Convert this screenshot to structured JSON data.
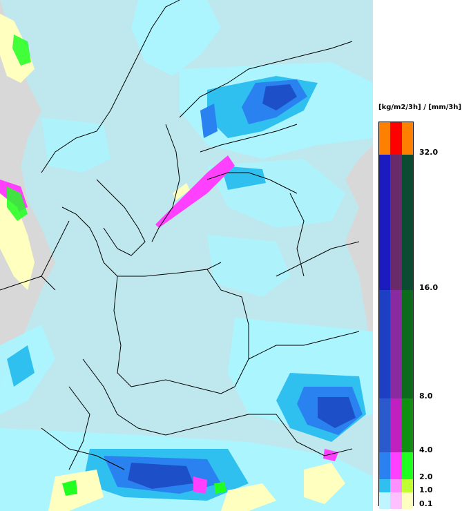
{
  "legend": {
    "units": "[kg/m2/3h] / [mm/3h]",
    "ticks": [
      "32.0",
      "16.0",
      "8.0",
      "4.0",
      "2.0",
      "1.0",
      "0.1"
    ],
    "bands": [
      {
        "colors": [
          "#ff8000",
          "#ff0000",
          "#ff8000"
        ]
      },
      {
        "colors": [
          "#1b1bbf",
          "#6a2a6a",
          "#0b4b32"
        ]
      },
      {
        "colors": [
          "#1d3fc4",
          "#8a2aa0",
          "#0c6a1c"
        ]
      },
      {
        "colors": [
          "#2a5acc",
          "#c020c0",
          "#109010"
        ]
      },
      {
        "colors": [
          "#2a82f0",
          "#ff40ff",
          "#20ff20"
        ]
      },
      {
        "colors": [
          "#30c0f0",
          "#ff90ff",
          "#c0ff30"
        ]
      },
      {
        "colors": [
          "#bff5ff",
          "#ffc0ff",
          "#ffffc0"
        ]
      }
    ]
  },
  "map": {
    "land_color": "#d8d8d8",
    "border_color": "#000000",
    "precip_colors": {
      "light": "#aaf5ff",
      "medium": "#30c0f0",
      "heavy": "#2a82f0",
      "strong": "#1d50c8",
      "convective": "#ff40ff",
      "mixed": "#ffffc0"
    }
  }
}
